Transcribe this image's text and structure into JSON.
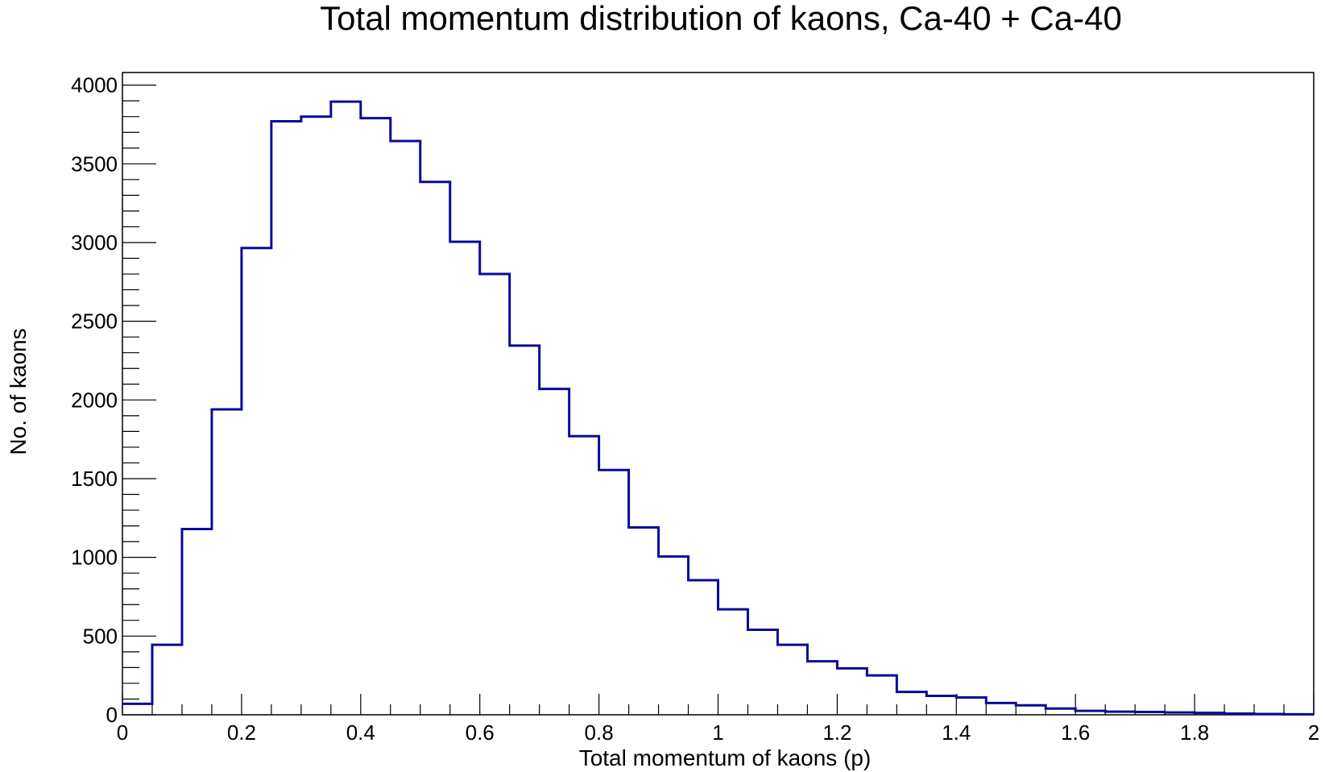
{
  "chart_data": {
    "type": "histogram",
    "title": "Total momentum distribution of kaons, Ca-40 + Ca-40",
    "xlabel": "Total momentum of kaons (p)",
    "ylabel": "No. of kaons",
    "xlim": [
      0,
      2
    ],
    "ylim": [
      0,
      4080
    ],
    "bin_width": 0.05,
    "bin_edges_start": 0,
    "values": [
      70,
      445,
      1180,
      1940,
      2965,
      3770,
      3800,
      3895,
      3790,
      3645,
      3385,
      3005,
      2800,
      2345,
      2070,
      1770,
      1555,
      1190,
      1005,
      855,
      670,
      540,
      445,
      340,
      295,
      250,
      145,
      120,
      110,
      75,
      60,
      40,
      25,
      20,
      18,
      15,
      12,
      8,
      5,
      3
    ],
    "x_ticks": [
      {
        "value": 0,
        "label": "0"
      },
      {
        "value": 0.2,
        "label": "0.2"
      },
      {
        "value": 0.4,
        "label": "0.4"
      },
      {
        "value": 0.6,
        "label": "0.6"
      },
      {
        "value": 0.8,
        "label": "0.8"
      },
      {
        "value": 1,
        "label": "1"
      },
      {
        "value": 1.2,
        "label": "1.2"
      },
      {
        "value": 1.4,
        "label": "1.4"
      },
      {
        "value": 1.6,
        "label": "1.6"
      },
      {
        "value": 1.8,
        "label": "1.8"
      },
      {
        "value": 2,
        "label": "2"
      }
    ],
    "y_ticks": [
      {
        "value": 0,
        "label": "0"
      },
      {
        "value": 500,
        "label": "500"
      },
      {
        "value": 1000,
        "label": "1000"
      },
      {
        "value": 1500,
        "label": "1500"
      },
      {
        "value": 2000,
        "label": "2000"
      },
      {
        "value": 2500,
        "label": "2500"
      },
      {
        "value": 3000,
        "label": "3000"
      },
      {
        "value": 3500,
        "label": "3500"
      },
      {
        "value": 4000,
        "label": "4000"
      }
    ],
    "grid": false,
    "line_color": "#0a0a9a",
    "frame_color": "#000000"
  }
}
